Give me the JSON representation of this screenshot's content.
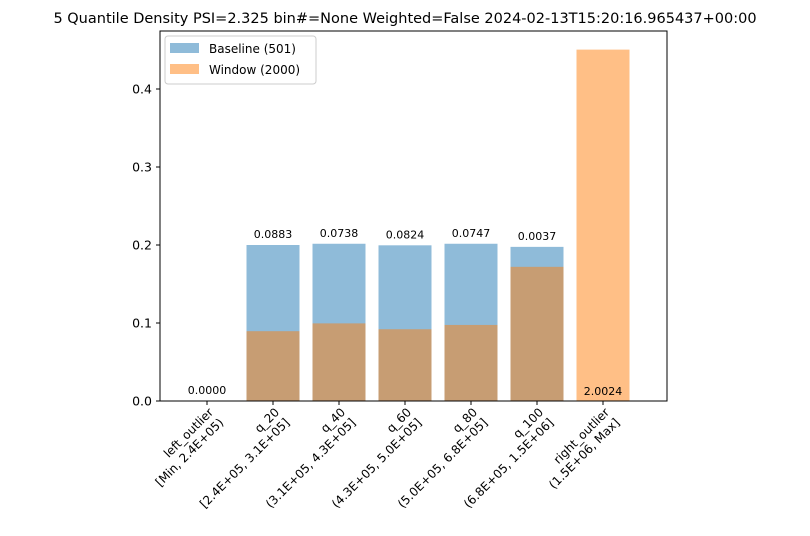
{
  "chart_data": {
    "type": "bar",
    "title": "5 Quantile Density PSI=2.325 bin#=None Weighted=False 2024-02-13T15:20:16.965437+00:00",
    "xlabel": "",
    "ylabel": "",
    "ylim": [
      0,
      0.45
    ],
    "yticks": [
      "0.0",
      "0.1",
      "0.2",
      "0.3",
      "0.4"
    ],
    "categories": [
      [
        "left_outlier",
        "[Min, 2.4E+05)"
      ],
      [
        "q_20",
        "[2.4E+05, 3.1E+05]"
      ],
      [
        "q_40",
        "(3.1E+05, 4.3E+05]"
      ],
      [
        "q_60",
        "(4.3E+05, 5.0E+05]"
      ],
      [
        "q_80",
        "(5.0E+05, 6.8E+05]"
      ],
      [
        "q_100",
        "(6.8E+05, 1.5E+06]"
      ],
      [
        "right_outlier",
        "(1.5E+06, Max]"
      ]
    ],
    "series": [
      {
        "name": "Baseline (501)",
        "color": "#1f77b4",
        "opacity": 0.5,
        "values": [
          0.0,
          0.2,
          0.2016,
          0.1996,
          0.2016,
          0.1976,
          0.0
        ]
      },
      {
        "name": "Window (2000)",
        "color": "#ff7f0e",
        "opacity": 0.5,
        "values": [
          0.0,
          0.0895,
          0.0995,
          0.092,
          0.0975,
          0.172,
          0.4505
        ]
      }
    ],
    "data_labels": [
      "0.0000",
      "0.0883",
      "0.0738",
      "0.0824",
      "0.0747",
      "0.0037",
      "2.0024"
    ],
    "legend_position": "top-left",
    "grid": false
  }
}
